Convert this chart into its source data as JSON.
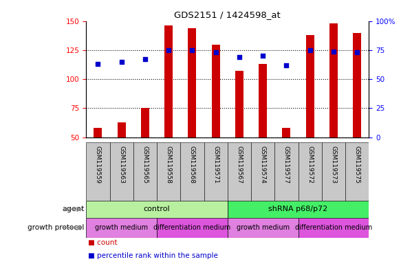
{
  "title": "GDS2151 / 1424598_at",
  "samples": [
    "GSM119559",
    "GSM119563",
    "GSM119565",
    "GSM119558",
    "GSM119568",
    "GSM119571",
    "GSM119567",
    "GSM119574",
    "GSM119577",
    "GSM119572",
    "GSM119573",
    "GSM119575"
  ],
  "counts": [
    58,
    63,
    75,
    146,
    144,
    130,
    107,
    113,
    58,
    138,
    148,
    140
  ],
  "percentile_ranks": [
    63,
    65,
    67,
    75,
    75,
    73,
    69,
    70,
    62,
    75,
    74,
    73
  ],
  "ylim_left": [
    50,
    150
  ],
  "yticks_left": [
    50,
    75,
    100,
    125,
    150
  ],
  "yticks_right": [
    0,
    25,
    50,
    75,
    100
  ],
  "bar_color": "#cc0000",
  "dot_color": "#0000cc",
  "agent_groups": [
    {
      "label": "control",
      "start": 0,
      "end": 6,
      "color": "#b8f0a0"
    },
    {
      "label": "shRNA p68/p72",
      "start": 6,
      "end": 12,
      "color": "#44ee66"
    }
  ],
  "growth_groups": [
    {
      "label": "growth medium",
      "start": 0,
      "end": 3,
      "color": "#e080e0"
    },
    {
      "label": "differentiation medium",
      "start": 3,
      "end": 6,
      "color": "#dd55dd"
    },
    {
      "label": "growth medium",
      "start": 6,
      "end": 9,
      "color": "#e080e0"
    },
    {
      "label": "differentiation medium",
      "start": 9,
      "end": 12,
      "color": "#dd55dd"
    }
  ],
  "legend_count_color": "#cc0000",
  "legend_percentile_color": "#0000cc",
  "bar_bottom": 50,
  "sample_bg_color": "#c8c8c8",
  "right_axis_100_label": "100%"
}
